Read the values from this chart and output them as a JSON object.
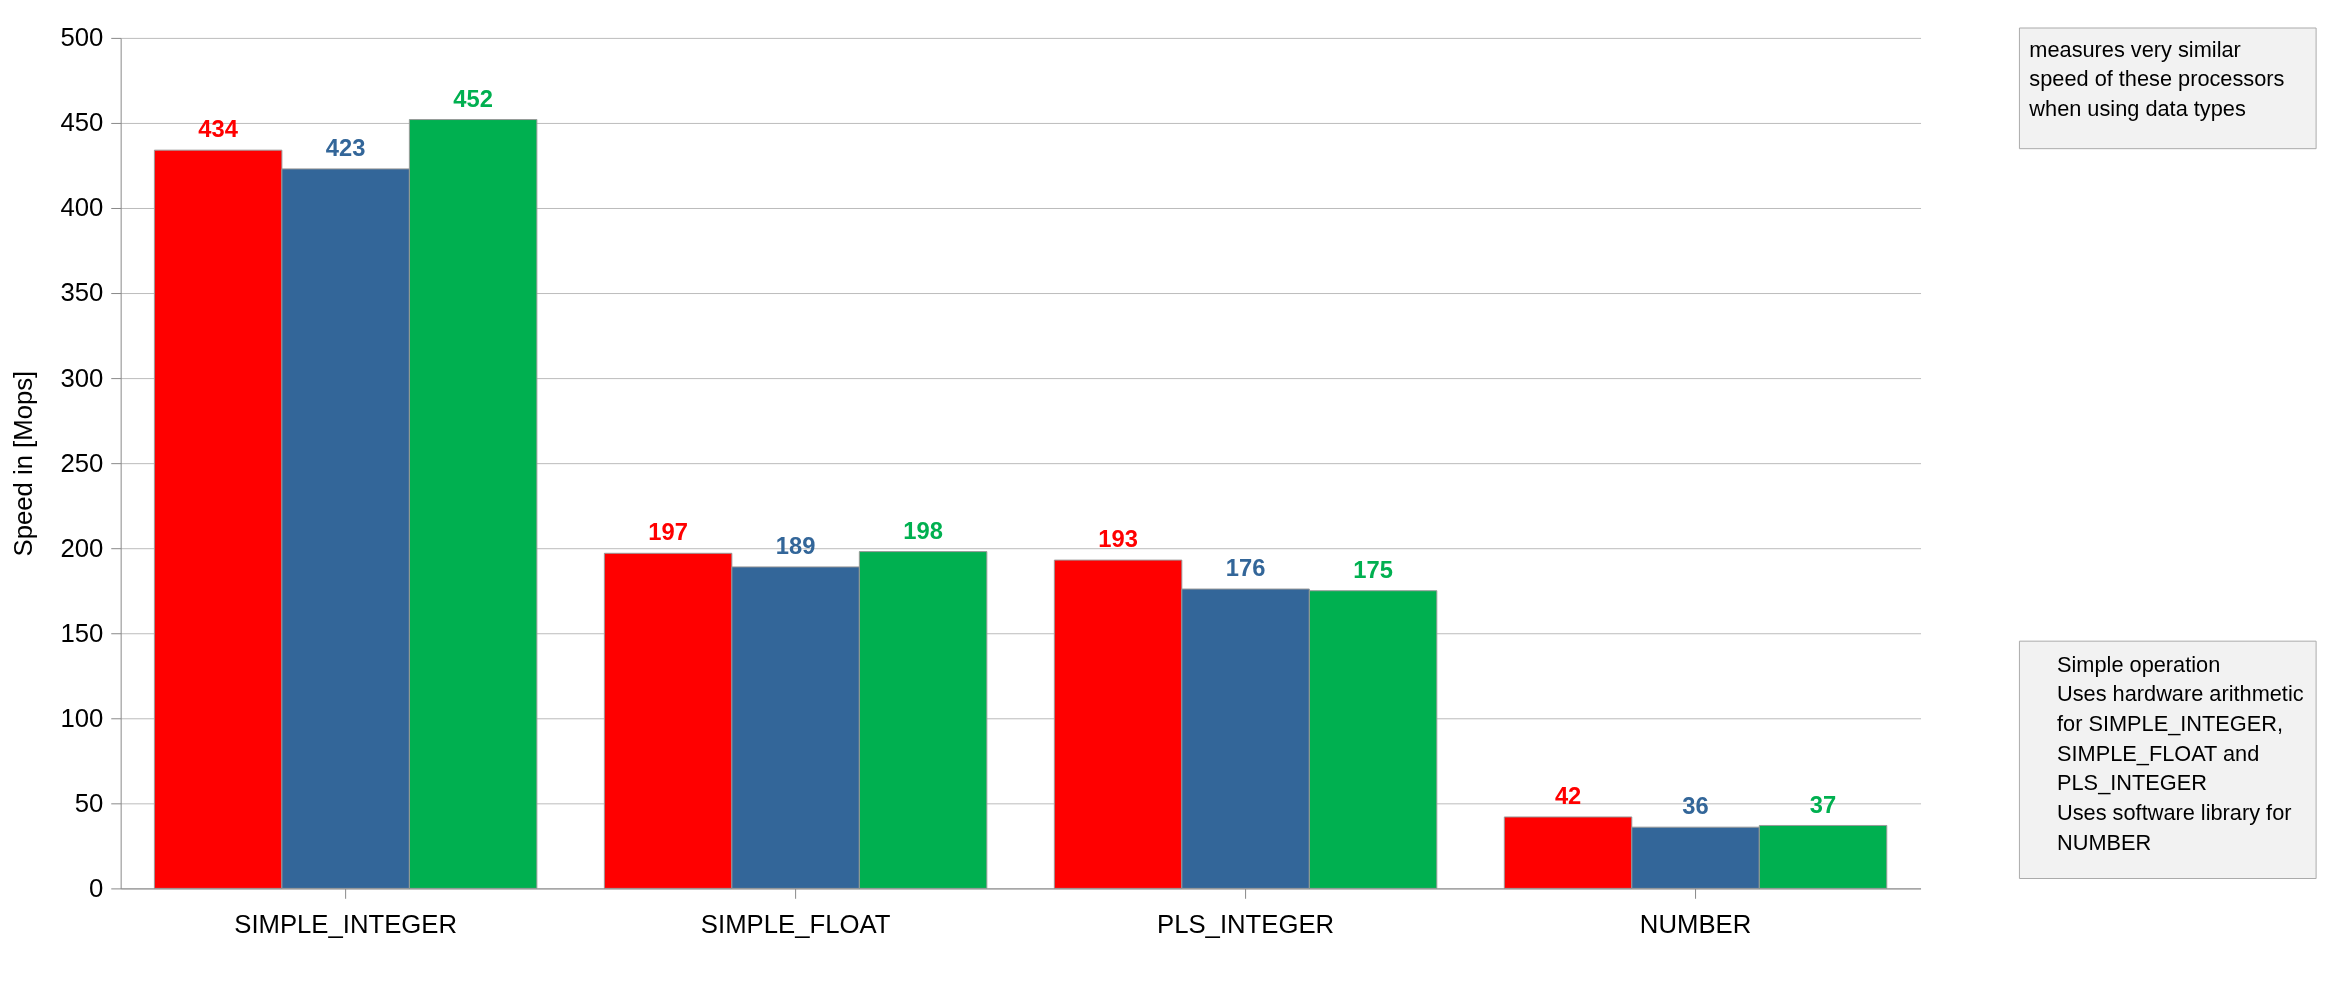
{
  "chart_data": {
    "type": "bar",
    "ylabel": "Speed in [Mops]",
    "categories": [
      "SIMPLE_INTEGER",
      "SIMPLE_FLOAT",
      "PLS_INTEGER",
      "NUMBER"
    ],
    "series": [
      {
        "color": "#ff0000",
        "values": [
          434,
          197,
          193,
          42
        ]
      },
      {
        "color": "#336699",
        "values": [
          423,
          189,
          176,
          36
        ]
      },
      {
        "color": "#00b050",
        "values": [
          452,
          198,
          175,
          37
        ]
      }
    ],
    "ylim": [
      0,
      500
    ],
    "yticks": [
      0,
      50,
      100,
      150,
      200,
      250,
      300,
      350,
      400,
      450,
      500
    ],
    "grid": "y",
    "data_labels": true,
    "annotations": [
      "measures very similar speed of these processors when using data types",
      "Simple operation",
      "Uses hardware arithmetic for SIMPLE_INTEGER, SIMPLE_FLOAT and PLS_INTEGER",
      "Uses software library for NUMBER"
    ]
  }
}
